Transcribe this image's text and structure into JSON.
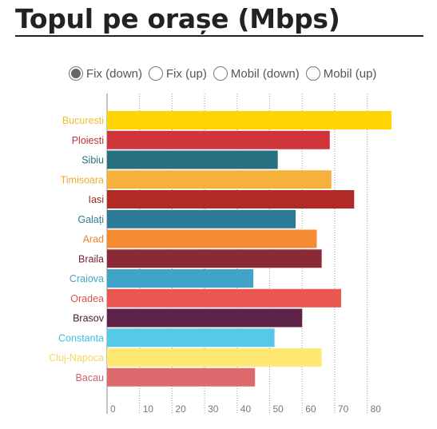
{
  "title": "Topul pe orașe (Mbps)",
  "filters": [
    {
      "label": "Fix (down)",
      "selected": true
    },
    {
      "label": "Fix (up)",
      "selected": false
    },
    {
      "label": "Mobil (down)",
      "selected": false
    },
    {
      "label": "Mobil (up)",
      "selected": false
    }
  ],
  "chart_data": {
    "type": "bar",
    "orientation": "horizontal",
    "categories": [
      "Bucuresti",
      "Ploiesti",
      "Sibiu",
      "Timisoara",
      "Iasi",
      "Galați",
      "Arad",
      "Braila",
      "Craiova",
      "Oradea",
      "Brasov",
      "Constanta",
      "Cluj-Napoca",
      "Bacau"
    ],
    "values": [
      87.5,
      68.5,
      52.5,
      69,
      76,
      58,
      64.5,
      66,
      45,
      72,
      60,
      51.5,
      66,
      45.5
    ],
    "colors": [
      "#FFD400",
      "#D0353C",
      "#286F7F",
      "#F5B13C",
      "#B12A25",
      "#2C7B97",
      "#F58C34",
      "#8B2A36",
      "#40A4C8",
      "#E95750",
      "#5E2248",
      "#56C9E6",
      "#FFE874",
      "#DD6A6C"
    ],
    "label_colors": [
      "#F0BE28",
      "#C0303A",
      "#286F7F",
      "#F0A830",
      "#A82822",
      "#2C7B97",
      "#F0842E",
      "#7A2230",
      "#40A4C8",
      "#E0504A",
      "#4A1838",
      "#40BCE0",
      "#F5D85A",
      "#D06266"
    ],
    "xticks": [
      0,
      10,
      20,
      30,
      40,
      50,
      60,
      70,
      80
    ],
    "xlim": [
      0,
      87.5
    ],
    "grid": "vertical dotted",
    "legend": "none"
  }
}
